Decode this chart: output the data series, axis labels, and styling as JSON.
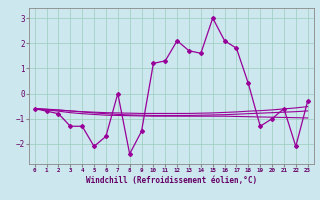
{
  "xlabel": "Windchill (Refroidissement éolien,°C)",
  "background_color": "#cce8ee",
  "grid_color": "#99ccbb",
  "line_color": "#990099",
  "x_values": [
    0,
    1,
    2,
    3,
    4,
    5,
    6,
    7,
    8,
    9,
    10,
    11,
    12,
    13,
    14,
    15,
    16,
    17,
    18,
    19,
    20,
    21,
    22,
    23
  ],
  "main_line": [
    -0.6,
    -0.7,
    -0.8,
    -1.3,
    -1.3,
    -2.1,
    -1.7,
    0.0,
    -2.4,
    -1.5,
    1.2,
    1.3,
    2.1,
    1.7,
    1.6,
    3.0,
    2.1,
    1.8,
    0.4,
    -1.3,
    -1.0,
    -0.6,
    -2.1,
    -0.3
  ],
  "smooth_line1": [
    -0.6,
    -0.63,
    -0.66,
    -0.69,
    -0.72,
    -0.74,
    -0.76,
    -0.77,
    -0.78,
    -0.79,
    -0.79,
    -0.79,
    -0.79,
    -0.79,
    -0.78,
    -0.77,
    -0.75,
    -0.73,
    -0.7,
    -0.68,
    -0.65,
    -0.61,
    -0.57,
    -0.52
  ],
  "smooth_line2": [
    -0.6,
    -0.65,
    -0.7,
    -0.76,
    -0.8,
    -0.83,
    -0.86,
    -0.87,
    -0.88,
    -0.89,
    -0.9,
    -0.9,
    -0.9,
    -0.9,
    -0.9,
    -0.9,
    -0.9,
    -0.91,
    -0.92,
    -0.93,
    -0.94,
    -0.95,
    -0.96,
    -0.97
  ],
  "smooth_line3": [
    -0.6,
    -0.62,
    -0.65,
    -0.69,
    -0.73,
    -0.77,
    -0.8,
    -0.83,
    -0.85,
    -0.86,
    -0.87,
    -0.87,
    -0.87,
    -0.87,
    -0.86,
    -0.85,
    -0.84,
    -0.82,
    -0.8,
    -0.78,
    -0.76,
    -0.74,
    -0.72,
    -0.69
  ],
  "ylim": [
    -2.8,
    3.4
  ],
  "yticks": [
    -2,
    -1,
    0,
    1,
    2,
    3
  ],
  "xlim": [
    -0.5,
    23.5
  ],
  "xlabel_color": "#660066",
  "tick_color": "#660066"
}
